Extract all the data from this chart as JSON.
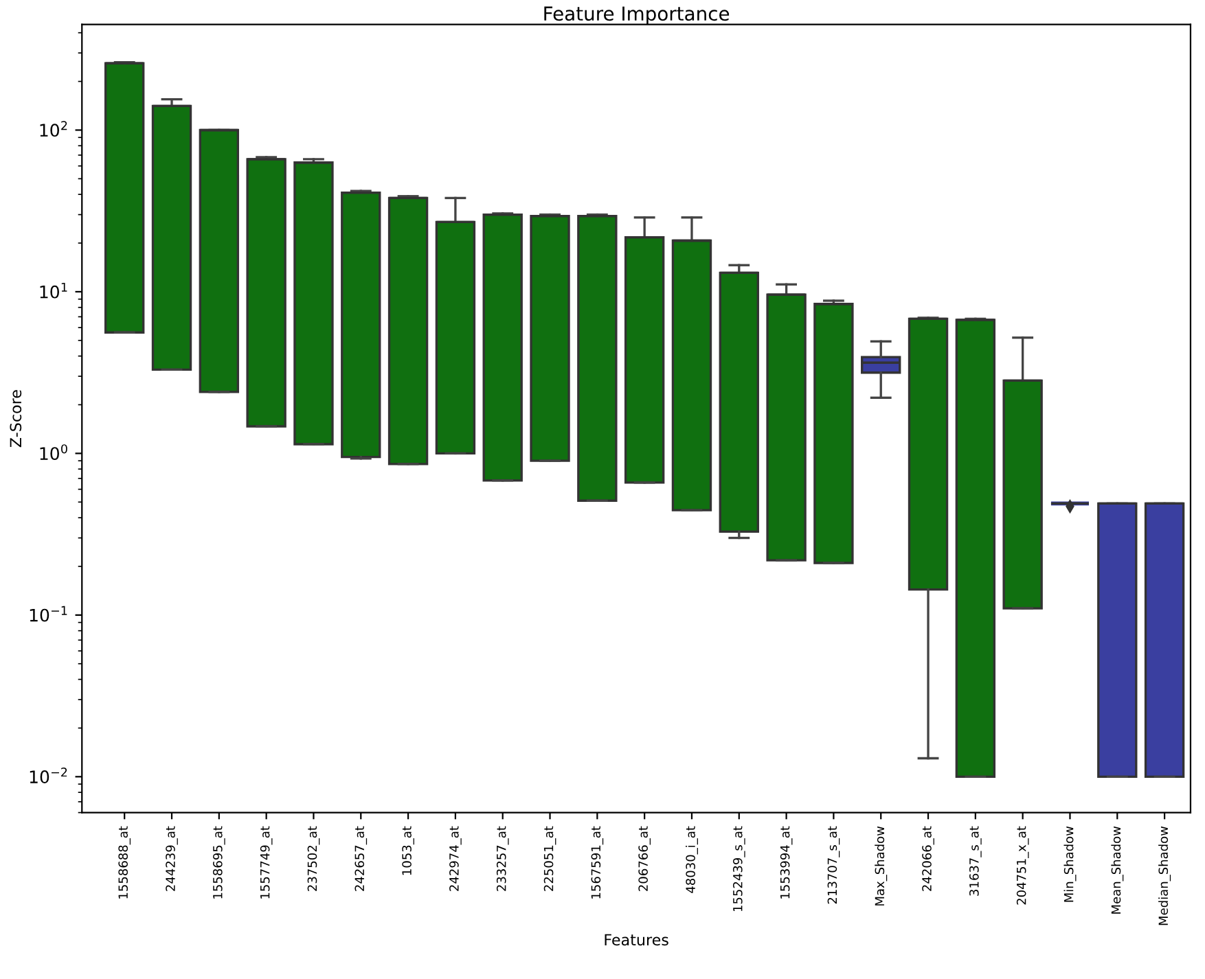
{
  "chart_data": {
    "type": "box",
    "title": "Feature Importance",
    "xlabel": "Features",
    "ylabel": "Z-Score",
    "log": "y",
    "ylim": [
      0.006,
      450
    ],
    "yticks": [
      {
        "value": 0.01,
        "label": "10$^{−2}$"
      },
      {
        "value": 0.1,
        "label": "10$^{−1}$"
      },
      {
        "value": 1,
        "label": "10$^{0}$"
      },
      {
        "value": 10,
        "label": "10$^{1}$"
      },
      {
        "value": 100,
        "label": "10$^{2}$"
      }
    ],
    "categories": [
      "1558688_at",
      "244239_at",
      "1558695_at",
      "1557749_at",
      "237502_at",
      "242657_at",
      "1053_at",
      "242974_at",
      "233257_at",
      "225051_at",
      "1567591_at",
      "206766_at",
      "48030_i_at",
      "1552439_s_at",
      "1553994_at",
      "213707_s_at",
      "Max_Shadow",
      "242066_at",
      "31637_s_at",
      "204751_x_at",
      "Min_Shadow",
      "Mean_Shadow",
      "Median_Shadow"
    ],
    "colors": [
      "#107010",
      "#107010",
      "#107010",
      "#107010",
      "#107010",
      "#107010",
      "#107010",
      "#107010",
      "#107010",
      "#107010",
      "#107010",
      "#107010",
      "#107010",
      "#107010",
      "#107010",
      "#107010",
      "#3a3fa0",
      "#107010",
      "#107010",
      "#107010",
      "#3a3fa0",
      "#3a3fa0",
      "#3a3fa0"
    ],
    "boxes": [
      {
        "low": 5.6,
        "q1": 5.6,
        "median": 259,
        "q3": 259,
        "high": 263
      },
      {
        "low": 3.3,
        "q1": 3.3,
        "median": 141,
        "q3": 141,
        "high": 155
      },
      {
        "low": 2.4,
        "q1": 2.4,
        "median": 100,
        "q3": 100,
        "high": 100
      },
      {
        "low": 1.47,
        "q1": 1.47,
        "median": 66,
        "q3": 66,
        "high": 68
      },
      {
        "low": 1.14,
        "q1": 1.14,
        "median": 63,
        "q3": 63,
        "high": 66
      },
      {
        "low": 0.93,
        "q1": 0.95,
        "median": 41,
        "q3": 41,
        "high": 42
      },
      {
        "low": 0.86,
        "q1": 0.86,
        "median": 38,
        "q3": 38,
        "high": 39
      },
      {
        "low": 1.0,
        "q1": 1.0,
        "median": 27,
        "q3": 27,
        "high": 38
      },
      {
        "low": 0.68,
        "q1": 0.68,
        "median": 30,
        "q3": 30,
        "high": 30.5
      },
      {
        "low": 0.9,
        "q1": 0.9,
        "median": 29.4,
        "q3": 29.4,
        "high": 30
      },
      {
        "low": 0.51,
        "q1": 0.51,
        "median": 29.4,
        "q3": 29.4,
        "high": 30
      },
      {
        "low": 0.66,
        "q1": 0.66,
        "median": 21.7,
        "q3": 21.7,
        "high": 28.8
      },
      {
        "low": 0.445,
        "q1": 0.445,
        "median": 20.7,
        "q3": 20.7,
        "high": 28.8
      },
      {
        "low": 0.3,
        "q1": 0.328,
        "median": 13.1,
        "q3": 13.1,
        "high": 14.6
      },
      {
        "low": 0.218,
        "q1": 0.218,
        "median": 9.6,
        "q3": 9.6,
        "high": 11.1
      },
      {
        "low": 0.21,
        "q1": 0.21,
        "median": 8.4,
        "q3": 8.4,
        "high": 8.8
      },
      {
        "low": 2.21,
        "q1": 3.16,
        "median": 3.64,
        "q3": 3.94,
        "high": 4.93
      },
      {
        "low": 0.013,
        "q1": 0.144,
        "median": 6.8,
        "q3": 6.8,
        "high": 6.9
      },
      {
        "low": 0.01,
        "q1": 0.01,
        "median": 6.7,
        "q3": 6.7,
        "high": 6.8
      },
      {
        "low": 0.11,
        "q1": 0.11,
        "median": 2.82,
        "q3": 2.82,
        "high": 5.2
      },
      {
        "low": 0.49,
        "q1": 0.49,
        "median": 0.49,
        "q3": 0.49,
        "high": 0.49,
        "outliers": [
          0.47
        ]
      },
      {
        "low": 0.01,
        "q1": 0.01,
        "median": 0.49,
        "q3": 0.49,
        "high": 0.49
      },
      {
        "low": 0.01,
        "q1": 0.01,
        "median": 0.49,
        "q3": 0.49,
        "high": 0.49
      }
    ]
  }
}
